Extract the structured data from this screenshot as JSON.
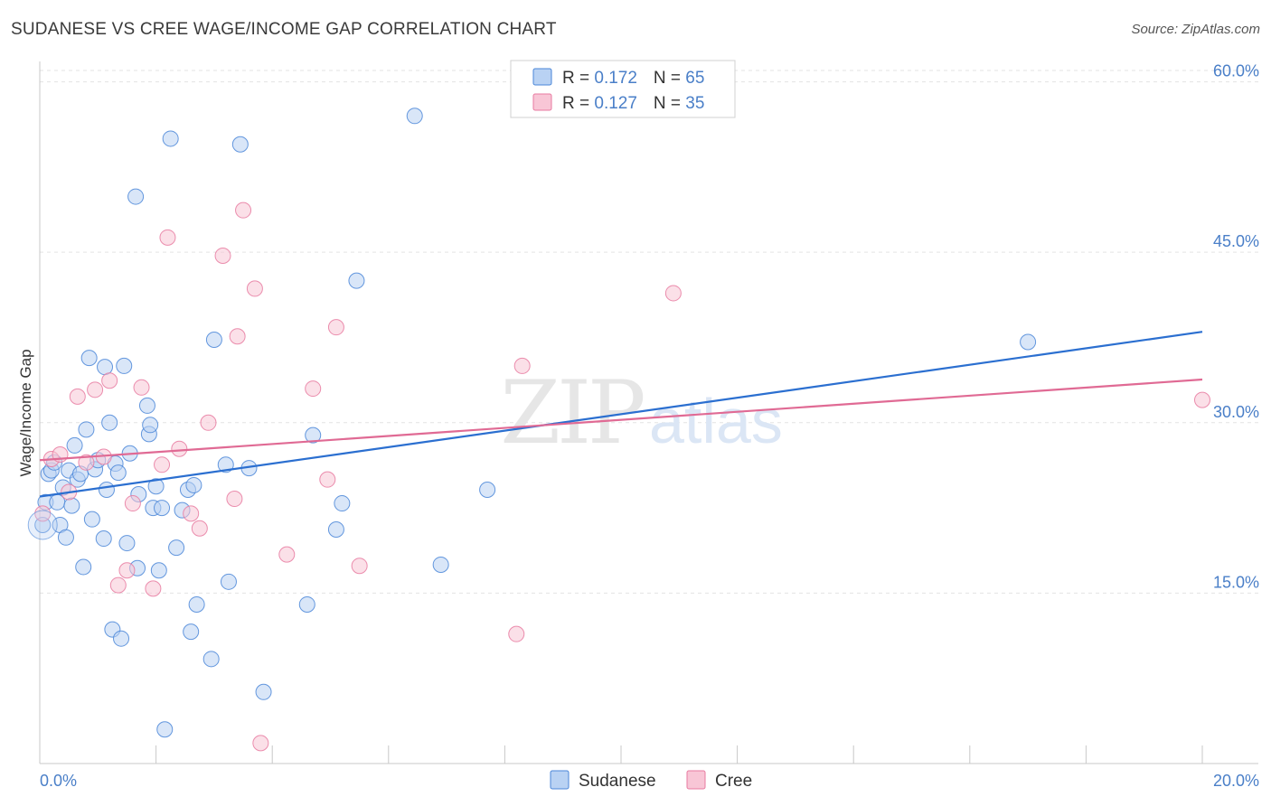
{
  "header": {
    "title": "SUDANESE VS CREE WAGE/INCOME GAP CORRELATION CHART",
    "source": "Source: ZipAtlas.com"
  },
  "watermark": {
    "zip": "ZIP",
    "atlas": "atlas"
  },
  "colors": {
    "blue": "#4a86d8",
    "blue_fill": "#b9d2f3",
    "blue_line": "#2b6fd0",
    "pink": "#e87aa0",
    "pink_fill": "#f8c6d6",
    "pink_line": "#e06a94",
    "axis_text": "#4a7fc8",
    "grid": "#e3e3e3"
  },
  "chart_data": {
    "type": "scatter",
    "title": "SUDANESE VS CREE WAGE/INCOME GAP CORRELATION CHART",
    "xlabel": "",
    "ylabel": "Wage/Income Gap",
    "xlim": [
      0,
      20
    ],
    "ylim": [
      0,
      61
    ],
    "x_tick_labels": [
      "0.0%",
      "20.0%"
    ],
    "y_ticks": [
      15,
      30,
      45,
      60
    ],
    "y_tick_labels": [
      "15.0%",
      "30.0%",
      "45.0%",
      "60.0%"
    ],
    "legend_stats": [
      {
        "r_label": "R = ",
        "r_value": "0.172",
        "n_label": "N = ",
        "n_value": "65"
      },
      {
        "r_label": "R = ",
        "r_value": "0.127",
        "n_label": "N = ",
        "n_value": "35"
      }
    ],
    "series": [
      {
        "name": "Sudanese",
        "color": "#4a86d8",
        "trend": {
          "x": [
            0,
            20
          ],
          "y": [
            23.5,
            38.0
          ]
        },
        "points": [
          [
            0.05,
            21.0
          ],
          [
            0.1,
            23.0
          ],
          [
            0.15,
            25.5
          ],
          [
            0.2,
            25.8
          ],
          [
            0.25,
            26.5
          ],
          [
            0.3,
            23.0
          ],
          [
            0.35,
            21.0
          ],
          [
            0.4,
            24.3
          ],
          [
            0.45,
            19.9
          ],
          [
            0.5,
            25.8
          ],
          [
            0.55,
            22.7
          ],
          [
            0.6,
            28.0
          ],
          [
            0.65,
            25.0
          ],
          [
            0.7,
            25.5
          ],
          [
            0.75,
            17.3
          ],
          [
            0.8,
            29.4
          ],
          [
            0.85,
            35.7
          ],
          [
            0.9,
            21.5
          ],
          [
            0.95,
            25.9
          ],
          [
            1.0,
            26.7
          ],
          [
            1.1,
            19.8
          ],
          [
            1.12,
            34.9
          ],
          [
            1.15,
            24.1
          ],
          [
            1.2,
            30.0
          ],
          [
            1.25,
            11.8
          ],
          [
            1.3,
            26.4
          ],
          [
            1.35,
            25.6
          ],
          [
            1.4,
            11.0
          ],
          [
            1.45,
            35.0
          ],
          [
            1.5,
            19.4
          ],
          [
            1.55,
            27.3
          ],
          [
            1.65,
            49.9
          ],
          [
            1.68,
            17.2
          ],
          [
            1.7,
            23.7
          ],
          [
            1.85,
            31.5
          ],
          [
            1.88,
            29.0
          ],
          [
            1.9,
            29.8
          ],
          [
            1.95,
            22.5
          ],
          [
            2.0,
            24.4
          ],
          [
            2.05,
            17.0
          ],
          [
            2.1,
            22.5
          ],
          [
            2.15,
            3.0
          ],
          [
            2.25,
            55.0
          ],
          [
            2.35,
            19.0
          ],
          [
            2.45,
            22.3
          ],
          [
            2.55,
            24.1
          ],
          [
            2.6,
            11.6
          ],
          [
            2.65,
            24.5
          ],
          [
            2.7,
            14.0
          ],
          [
            2.95,
            9.2
          ],
          [
            3.0,
            37.3
          ],
          [
            3.2,
            26.3
          ],
          [
            3.25,
            16.0
          ],
          [
            3.45,
            54.5
          ],
          [
            3.6,
            26.0
          ],
          [
            3.85,
            6.3
          ],
          [
            4.6,
            14.0
          ],
          [
            4.7,
            28.9
          ],
          [
            5.1,
            20.6
          ],
          [
            5.2,
            22.9
          ],
          [
            5.45,
            42.5
          ],
          [
            6.45,
            57.0
          ],
          [
            6.9,
            17.5
          ],
          [
            7.7,
            24.1
          ],
          [
            17.0,
            37.1
          ]
        ]
      },
      {
        "name": "Cree",
        "color": "#e87aa0",
        "trend": {
          "x": [
            0,
            20
          ],
          "y": [
            26.7,
            33.8
          ]
        },
        "points": [
          [
            0.05,
            22.0
          ],
          [
            0.2,
            26.8
          ],
          [
            0.35,
            27.2
          ],
          [
            0.5,
            23.9
          ],
          [
            0.65,
            32.3
          ],
          [
            0.8,
            26.5
          ],
          [
            0.95,
            32.9
          ],
          [
            1.1,
            27.0
          ],
          [
            1.2,
            33.7
          ],
          [
            1.35,
            15.7
          ],
          [
            1.5,
            17.0
          ],
          [
            1.6,
            22.9
          ],
          [
            1.75,
            33.1
          ],
          [
            1.95,
            15.4
          ],
          [
            2.1,
            26.3
          ],
          [
            2.2,
            46.3
          ],
          [
            2.4,
            27.7
          ],
          [
            2.6,
            22.0
          ],
          [
            2.75,
            20.7
          ],
          [
            2.9,
            30.0
          ],
          [
            3.15,
            44.7
          ],
          [
            3.35,
            23.3
          ],
          [
            3.4,
            37.6
          ],
          [
            3.5,
            48.7
          ],
          [
            3.7,
            41.8
          ],
          [
            3.8,
            1.8
          ],
          [
            4.25,
            18.4
          ],
          [
            4.7,
            33.0
          ],
          [
            4.95,
            25.0
          ],
          [
            5.1,
            38.4
          ],
          [
            5.5,
            17.4
          ],
          [
            8.2,
            11.4
          ],
          [
            8.3,
            35.0
          ],
          [
            10.9,
            41.4
          ],
          [
            20.0,
            32.0
          ]
        ]
      }
    ]
  }
}
